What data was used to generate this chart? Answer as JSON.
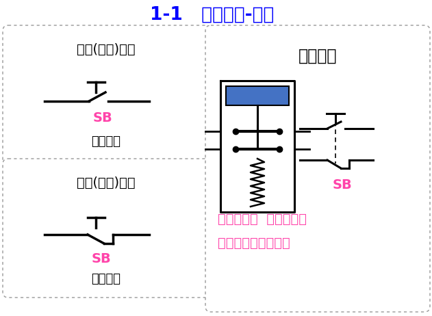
{
  "title": "1-1   控制器件-按钮",
  "title_color": "#0000FF",
  "bg_color": "#FFFFFF",
  "black": "#000000",
  "pink": "#FF44AA",
  "blue_rect": "#4472C4",
  "gray_dot": "#888888",
  "box1_label": "常开(动合)按钮",
  "box2_label": "常闭(动断)按钮",
  "right_title": "复合按钮",
  "sb": "SB",
  "elec_symbol": "电路符号",
  "bottom1": "复合按钮：  常开按钮和",
  "bottom2": "常闭按钮做在一起。"
}
